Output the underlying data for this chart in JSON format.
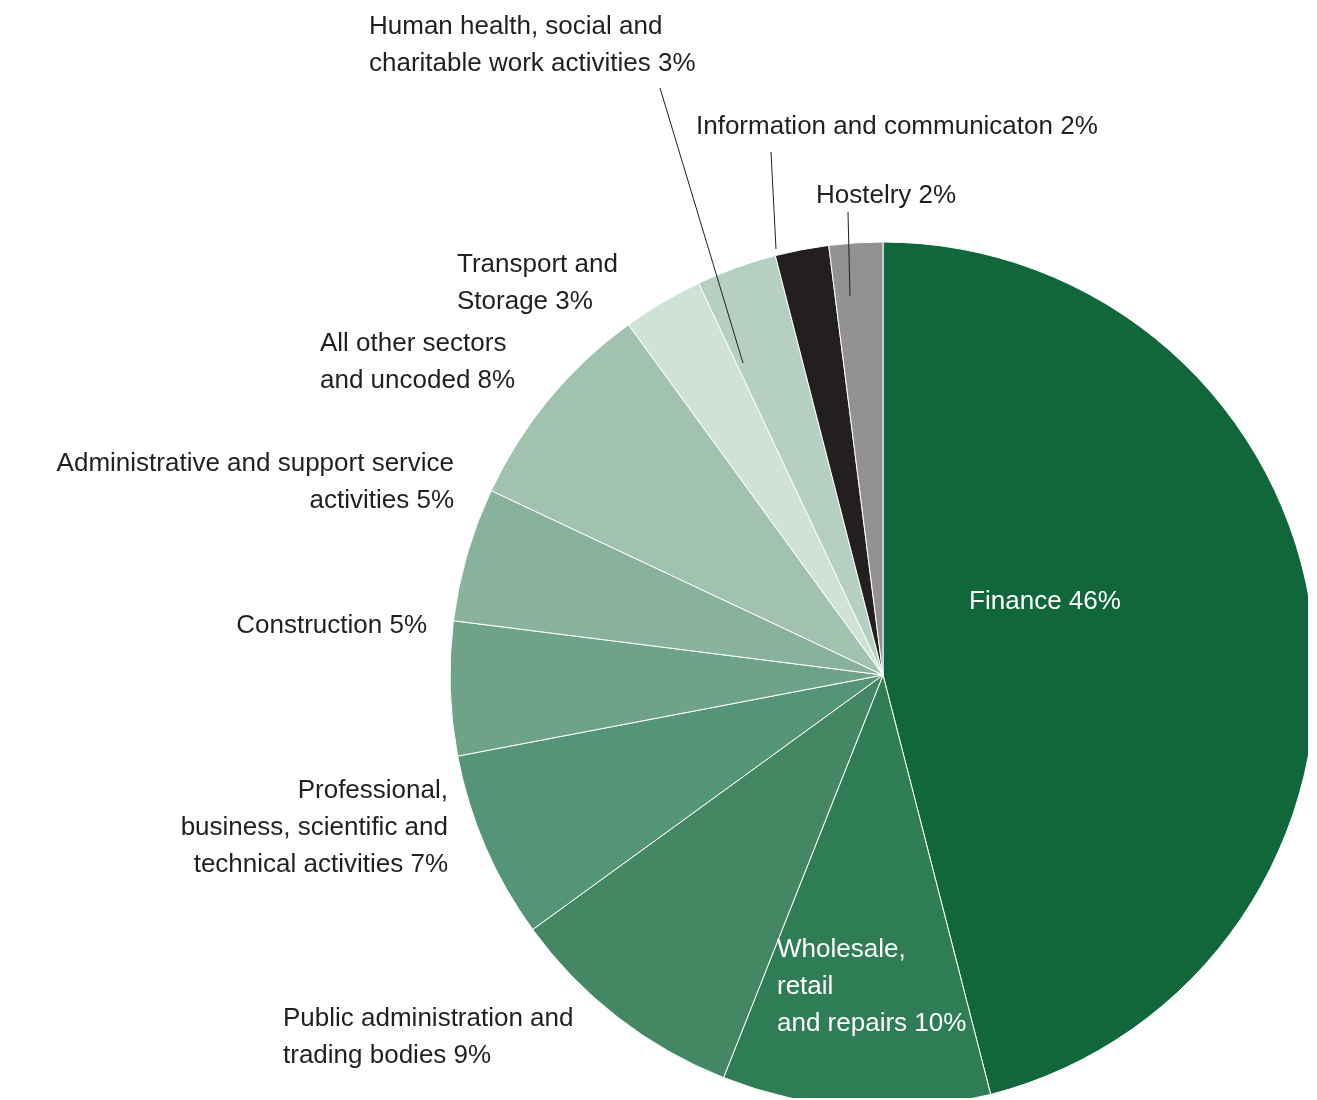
{
  "chart_data": {
    "type": "pie",
    "categories": [
      "Finance",
      "Wholesale, retail and repairs",
      "Public administration and trading bodies",
      "Professional, business, scientific and technical activities",
      "Construction",
      "Administrative and support service activities",
      "All other sectors and uncoded",
      "Transport and Storage",
      "Human health, social and charitable work activities",
      "Information and communicaton",
      "Hostelry"
    ],
    "values": [
      46,
      10,
      9,
      7,
      5,
      5,
      8,
      3,
      3,
      2,
      2
    ],
    "value_labels": [
      "46%",
      "10%",
      "9%",
      "7%",
      "5%",
      "5%",
      "8%",
      "3%",
      "3%",
      "2%",
      "2%"
    ],
    "colors": [
      "#10673a",
      "#2e7d55",
      "#448863",
      "#559577",
      "#6ea387",
      "#88b29b",
      "#a0c2ae",
      "#d0e1d6",
      "#b5cfc1",
      "#231f20",
      "#939192"
    ]
  }
}
